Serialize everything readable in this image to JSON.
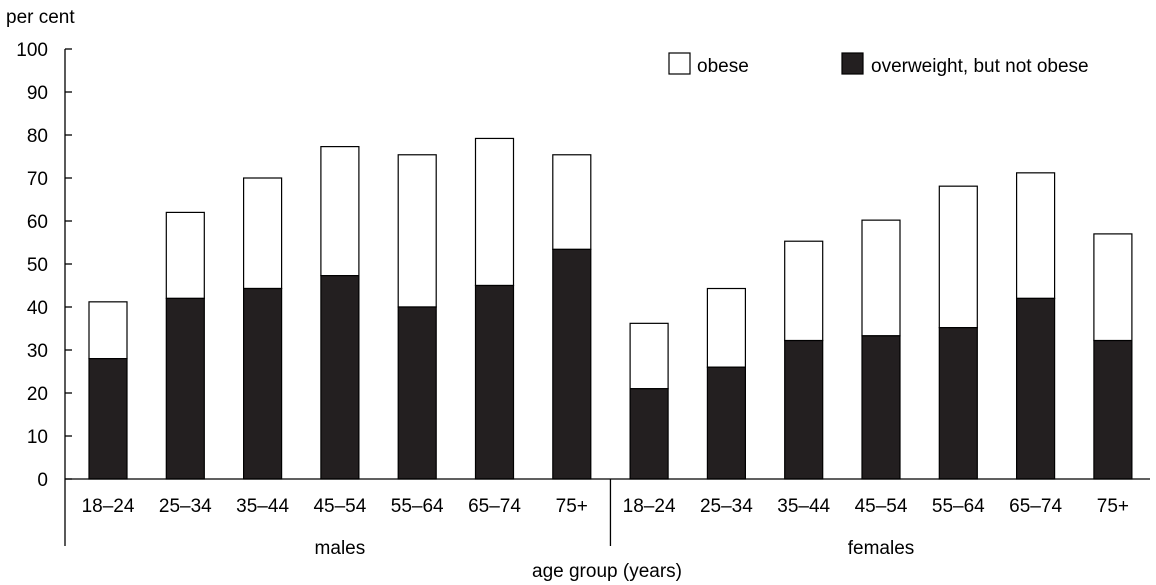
{
  "chart_data": {
    "type": "bar",
    "stacked": true,
    "ylabel": "per cent",
    "xlabel": "age group (years)",
    "ylim": [
      0,
      100
    ],
    "yticks": [
      0,
      10,
      20,
      30,
      40,
      50,
      60,
      70,
      80,
      90,
      100
    ],
    "grid": false,
    "legend_position": "top-right",
    "colors": {
      "obese": "#ffffff",
      "overweight": "#231f20",
      "outline": "#000000"
    },
    "legend": [
      {
        "key": "obese",
        "label": "obese"
      },
      {
        "key": "overweight",
        "label": "overweight, but not obese"
      }
    ],
    "groups": [
      {
        "label": "males",
        "categories": [
          "18–24",
          "25–34",
          "35–44",
          "45–54",
          "55–64",
          "65–74",
          "75+"
        ],
        "overweight_not_obese": [
          28,
          42,
          44.3,
          47.3,
          40,
          45,
          53.4
        ],
        "total_overweight_or_obese": [
          41.2,
          62,
          70,
          77.3,
          75.4,
          79.2,
          75.4
        ]
      },
      {
        "label": "females",
        "categories": [
          "18–24",
          "25–34",
          "35–44",
          "45–54",
          "55–64",
          "65–74",
          "75+"
        ],
        "overweight_not_obese": [
          21,
          26,
          32.2,
          33.3,
          35.2,
          42,
          32.2
        ],
        "total_overweight_or_obese": [
          36.2,
          44.3,
          55.3,
          60.2,
          68.1,
          71.2,
          57
        ]
      }
    ]
  }
}
